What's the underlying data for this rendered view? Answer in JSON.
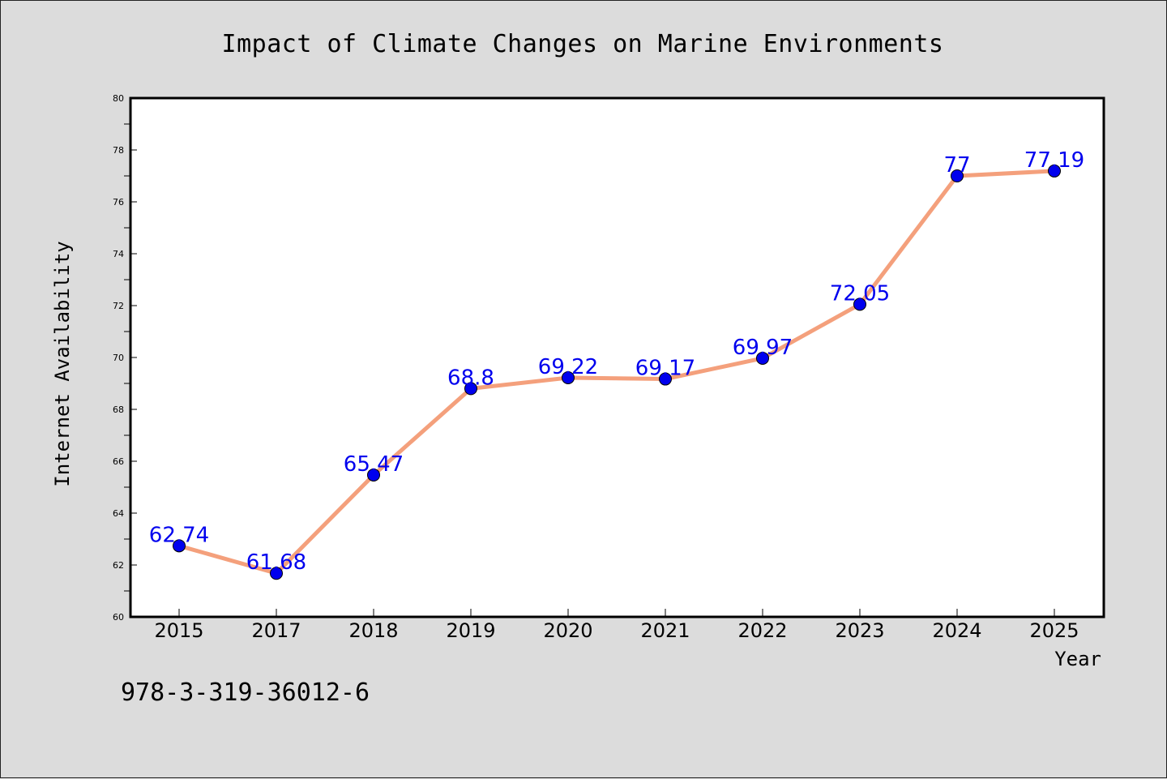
{
  "chart_data": {
    "type": "line",
    "title": "Impact of Climate Changes on Marine Environments",
    "xlabel": "Year",
    "ylabel": "Internet Availability",
    "categories": [
      "2015",
      "2017",
      "2018",
      "2019",
      "2020",
      "2021",
      "2022",
      "2023",
      "2024",
      "2025"
    ],
    "series": [
      {
        "values": [
          62.74,
          61.68,
          65.47,
          68.8,
          69.22,
          69.17,
          69.97,
          72.05,
          77,
          77.19
        ],
        "data_labels": [
          "62.74",
          "61.68",
          "65.47",
          "68.8",
          "69.22",
          "69.17",
          "69.97",
          "72.05",
          "77",
          "77.19"
        ],
        "line_color": "#f4a07c",
        "marker_color": "#0000ee"
      }
    ],
    "ylim": [
      60,
      80
    ],
    "yticks": [
      "60",
      "62",
      "64",
      "66",
      "68",
      "70",
      "72",
      "74",
      "76",
      "78",
      "80"
    ],
    "grid": false,
    "legend": false
  },
  "footer": {
    "isbn": "978-3-319-36012-6"
  },
  "colors": {
    "background": "#dcdcdc",
    "plot_area": "#ffffff",
    "line": "#f4a07c",
    "marker": "#0000ee",
    "label": "#0000ee"
  }
}
